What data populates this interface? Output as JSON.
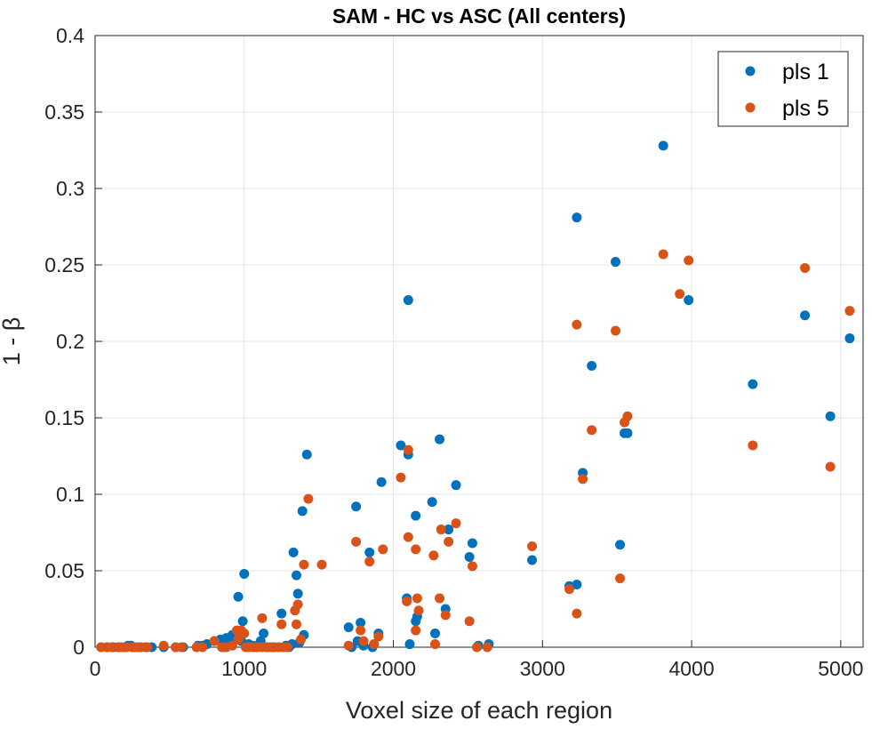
{
  "chart_data": {
    "type": "scatter",
    "title": "SAM - HC vs ASC (All centers)",
    "xlabel": "Voxel size of each region",
    "ylabel": "1 - β",
    "xlim": [
      0,
      5150
    ],
    "ylim": [
      0,
      0.4
    ],
    "xticks": [
      0,
      1000,
      2000,
      3000,
      4000,
      5000
    ],
    "yticks": [
      0,
      0.05,
      0.1,
      0.15,
      0.2,
      0.25,
      0.3,
      0.35,
      0.4
    ],
    "xtick_labels": [
      "0",
      "1000",
      "2000",
      "3000",
      "4000",
      "5000"
    ],
    "ytick_labels": [
      "0",
      "0.05",
      "0.1",
      "0.15",
      "0.2",
      "0.25",
      "0.3",
      "0.35",
      "0.4"
    ],
    "grid": true,
    "legend_position": "top-right",
    "series": [
      {
        "name": "pls 1",
        "color": "#0072BD",
        "points": [
          [
            40,
            0
          ],
          [
            80,
            0
          ],
          [
            120,
            0
          ],
          [
            160,
            0
          ],
          [
            200,
            0
          ],
          [
            220,
            0.001
          ],
          [
            240,
            0.001
          ],
          [
            260,
            0
          ],
          [
            300,
            0
          ],
          [
            340,
            0
          ],
          [
            380,
            0
          ],
          [
            460,
            0
          ],
          [
            540,
            0
          ],
          [
            590,
            0
          ],
          [
            690,
            0.001
          ],
          [
            720,
            0.001
          ],
          [
            750,
            0.002
          ],
          [
            800,
            0.004
          ],
          [
            840,
            0.005
          ],
          [
            860,
            0
          ],
          [
            880,
            0.006
          ],
          [
            900,
            0.003
          ],
          [
            920,
            0.008
          ],
          [
            950,
            0.009
          ],
          [
            960,
            0.033
          ],
          [
            980,
            0.004
          ],
          [
            990,
            0.017
          ],
          [
            1000,
            0.048
          ],
          [
            1030,
            0.002
          ],
          [
            1060,
            0.001
          ],
          [
            1080,
            0
          ],
          [
            1110,
            0.004
          ],
          [
            1130,
            0.009
          ],
          [
            1160,
            0
          ],
          [
            1200,
            0
          ],
          [
            1230,
            0
          ],
          [
            1250,
            0.022
          ],
          [
            1280,
            0.001
          ],
          [
            1300,
            0
          ],
          [
            1320,
            0.002
          ],
          [
            1330,
            0.062
          ],
          [
            1350,
            0.047
          ],
          [
            1360,
            0.035
          ],
          [
            1370,
            0.003
          ],
          [
            1390,
            0.089
          ],
          [
            1400,
            0.008
          ],
          [
            1420,
            0.126
          ],
          [
            1700,
            0.013
          ],
          [
            1720,
            0
          ],
          [
            1750,
            0.092
          ],
          [
            1760,
            0.004
          ],
          [
            1780,
            0.016
          ],
          [
            1800,
            0.001
          ],
          [
            1840,
            0.062
          ],
          [
            1860,
            0
          ],
          [
            1900,
            0.009
          ],
          [
            1920,
            0.108
          ],
          [
            2050,
            0.132
          ],
          [
            2090,
            0.032
          ],
          [
            2100,
            0.126
          ],
          [
            2100,
            0.227
          ],
          [
            2110,
            0.002
          ],
          [
            2150,
            0.086
          ],
          [
            2150,
            0.017
          ],
          [
            2160,
            0.02
          ],
          [
            2260,
            0.095
          ],
          [
            2280,
            0.009
          ],
          [
            2310,
            0.136
          ],
          [
            2350,
            0.025
          ],
          [
            2370,
            0.077
          ],
          [
            2420,
            0.106
          ],
          [
            2510,
            0.059
          ],
          [
            2530,
            0.068
          ],
          [
            2570,
            0.001
          ],
          [
            2640,
            0.002
          ],
          [
            2930,
            0.057
          ],
          [
            3180,
            0.04
          ],
          [
            3230,
            0.281
          ],
          [
            3230,
            0.041
          ],
          [
            3270,
            0.114
          ],
          [
            3330,
            0.184
          ],
          [
            3490,
            0.252
          ],
          [
            3520,
            0.067
          ],
          [
            3550,
            0.14
          ],
          [
            3570,
            0.14
          ],
          [
            3810,
            0.328
          ],
          [
            3980,
            0.227
          ],
          [
            4410,
            0.172
          ],
          [
            4760,
            0.217
          ],
          [
            4930,
            0.151
          ],
          [
            5060,
            0.202
          ]
        ]
      },
      {
        "name": "pls 5",
        "color": "#D95319",
        "points": [
          [
            40,
            0
          ],
          [
            80,
            0
          ],
          [
            110,
            0
          ],
          [
            150,
            0
          ],
          [
            180,
            0
          ],
          [
            210,
            0
          ],
          [
            250,
            0
          ],
          [
            280,
            0
          ],
          [
            310,
            0
          ],
          [
            350,
            0
          ],
          [
            460,
            0.001
          ],
          [
            540,
            0
          ],
          [
            580,
            0
          ],
          [
            680,
            0
          ],
          [
            720,
            0
          ],
          [
            800,
            0.004
          ],
          [
            850,
            0
          ],
          [
            880,
            0
          ],
          [
            920,
            0.001
          ],
          [
            950,
            0.011
          ],
          [
            960,
            0.005
          ],
          [
            980,
            0.011
          ],
          [
            1000,
            0.009
          ],
          [
            1010,
            0
          ],
          [
            1030,
            0
          ],
          [
            1060,
            0
          ],
          [
            1090,
            0
          ],
          [
            1120,
            0
          ],
          [
            1150,
            0
          ],
          [
            1180,
            0
          ],
          [
            1200,
            0
          ],
          [
            1230,
            0
          ],
          [
            1260,
            0
          ],
          [
            1290,
            0
          ],
          [
            1120,
            0.019
          ],
          [
            1250,
            0.015
          ],
          [
            1340,
            0.024
          ],
          [
            1350,
            0.015
          ],
          [
            1360,
            0.028
          ],
          [
            1380,
            0.005
          ],
          [
            1400,
            0.054
          ],
          [
            1430,
            0.097
          ],
          [
            1520,
            0.054
          ],
          [
            1700,
            0.001
          ],
          [
            1750,
            0.069
          ],
          [
            1780,
            0.011
          ],
          [
            1800,
            0.004
          ],
          [
            1840,
            0.056
          ],
          [
            1870,
            0.002
          ],
          [
            1900,
            0.007
          ],
          [
            1930,
            0.064
          ],
          [
            2050,
            0.111
          ],
          [
            2090,
            0.03
          ],
          [
            2100,
            0.129
          ],
          [
            2100,
            0.072
          ],
          [
            2150,
            0.011
          ],
          [
            2150,
            0.064
          ],
          [
            2160,
            0.032
          ],
          [
            2170,
            0.024
          ],
          [
            2270,
            0.06
          ],
          [
            2280,
            0.002
          ],
          [
            2310,
            0.032
          ],
          [
            2320,
            0.077
          ],
          [
            2350,
            0.021
          ],
          [
            2370,
            0.069
          ],
          [
            2420,
            0.081
          ],
          [
            2510,
            0.017
          ],
          [
            2530,
            0.053
          ],
          [
            2560,
            0
          ],
          [
            2630,
            0
          ],
          [
            2930,
            0.066
          ],
          [
            3180,
            0.038
          ],
          [
            3230,
            0.211
          ],
          [
            3230,
            0.022
          ],
          [
            3270,
            0.11
          ],
          [
            3330,
            0.142
          ],
          [
            3490,
            0.207
          ],
          [
            3520,
            0.045
          ],
          [
            3550,
            0.147
          ],
          [
            3570,
            0.151
          ],
          [
            3810,
            0.257
          ],
          [
            3920,
            0.231
          ],
          [
            3980,
            0.253
          ],
          [
            4410,
            0.132
          ],
          [
            4760,
            0.248
          ],
          [
            4930,
            0.118
          ],
          [
            5060,
            0.22
          ]
        ]
      }
    ]
  }
}
